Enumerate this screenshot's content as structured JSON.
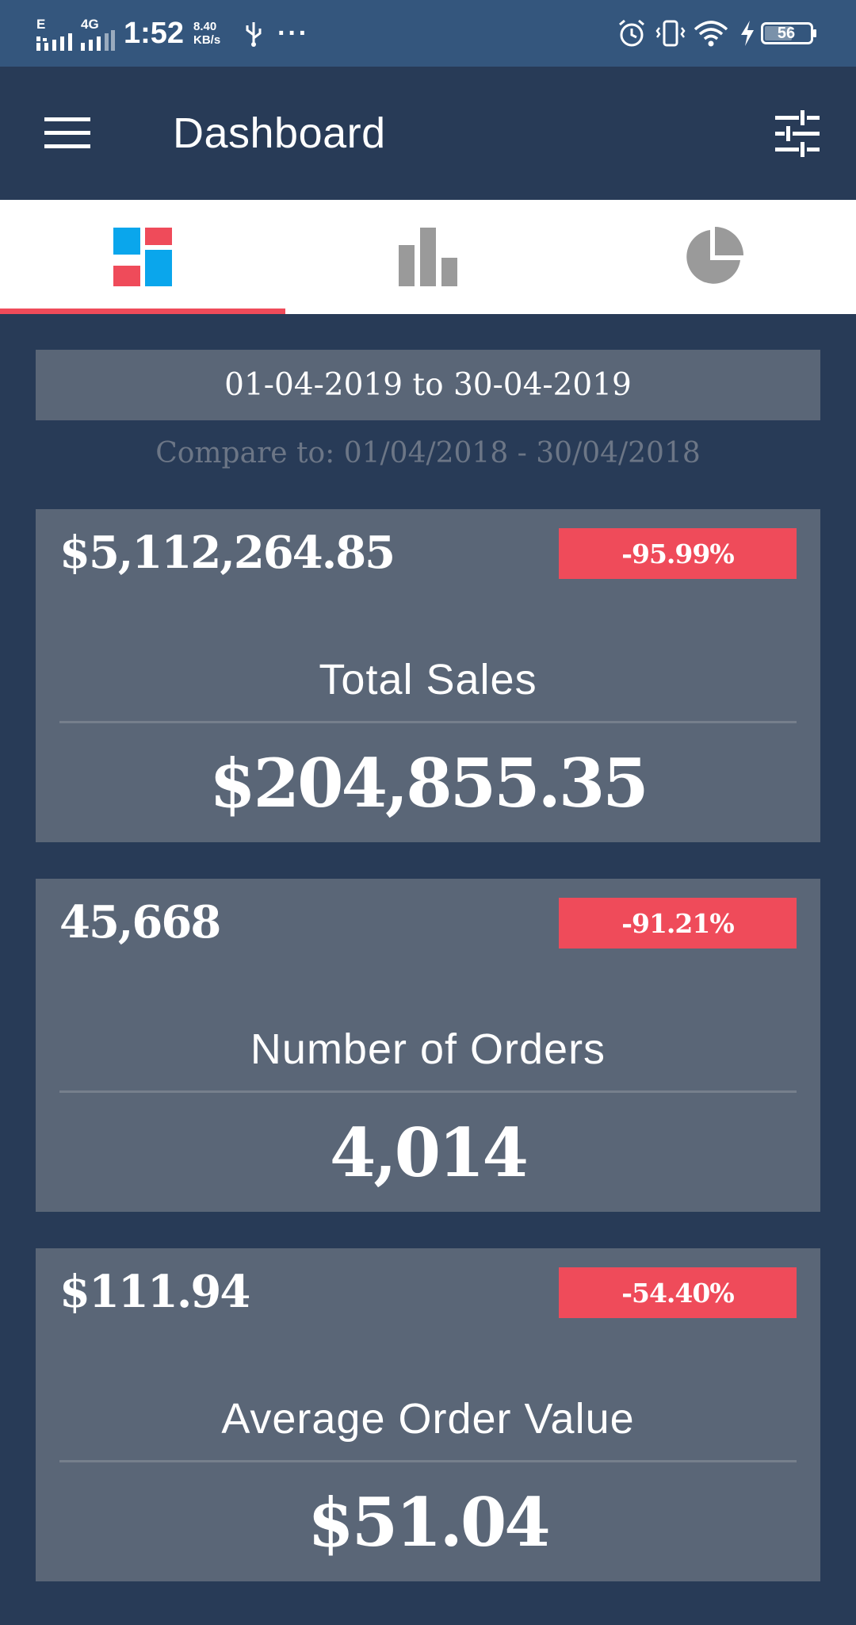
{
  "status_bar": {
    "network_left": "E",
    "network_right": "4G",
    "time": "1:52",
    "speed_value": "8.40",
    "speed_unit": "KB/s",
    "more": "···",
    "battery": "56"
  },
  "app_bar": {
    "title": "Dashboard",
    "menu_icon": "hamburger-menu-icon",
    "filter_icon": "sliders-icon"
  },
  "tabs": [
    {
      "name": "dashboard-tab",
      "icon": "tiles-icon",
      "active": true
    },
    {
      "name": "bar-chart-tab",
      "icon": "bar-chart-icon",
      "active": false
    },
    {
      "name": "pie-chart-tab",
      "icon": "pie-chart-icon",
      "active": false
    }
  ],
  "date_range": "01-04-2019 to 30-04-2019",
  "compare_text": "Compare to: 01/04/2018 - 30/04/2018",
  "cards": [
    {
      "prev_value": "$5,112,264.85",
      "change": "-95.99%",
      "title": "Total Sales",
      "value": "$204,855.35"
    },
    {
      "prev_value": "45,668",
      "change": "-91.21%",
      "title": "Number of Orders",
      "value": "4,014"
    },
    {
      "prev_value": "$111.94",
      "change": "-54.40%",
      "title": "Average Order Value",
      "value": "$51.04"
    }
  ],
  "colors": {
    "status_bar": "#34567d",
    "background": "#283b57",
    "card": "#5a6677",
    "accent_red": "#ef4b5a",
    "tile_blue": "#0aa6ec"
  }
}
